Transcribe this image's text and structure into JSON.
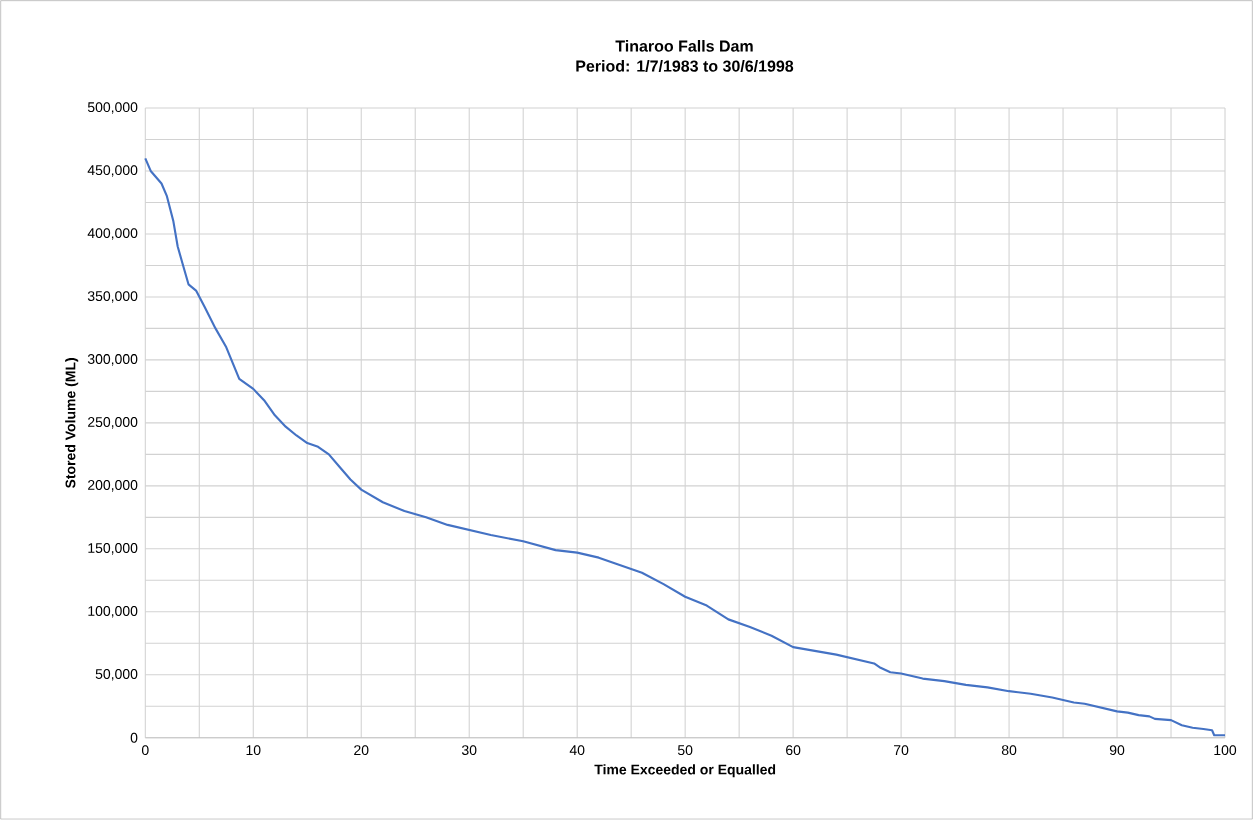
{
  "chart_data": {
    "type": "line",
    "title": "Tinaroo Falls Dam",
    "subtitle": "Period: 1/7/1983 to 30/6/1998",
    "xlabel": "Time Exceeded or Equalled",
    "ylabel": "Stored Volume (ML)",
    "xlim": [
      0,
      100
    ],
    "ylim": [
      0,
      500000
    ],
    "grid": true,
    "legend": false,
    "marker": "none",
    "line_style": "solid",
    "xticks": [
      0,
      {
        "value": 5,
        "label": null
      },
      10,
      {
        "value": 15,
        "label": null
      },
      20,
      {
        "value": 25,
        "label": null
      },
      30,
      {
        "value": 35,
        "label": null
      },
      40,
      {
        "value": 45,
        "label": null
      },
      50,
      {
        "value": 55,
        "label": null
      },
      60,
      {
        "value": 65,
        "label": null
      },
      70,
      {
        "value": 75,
        "label": null
      },
      80,
      {
        "value": 85,
        "label": null
      },
      90,
      {
        "value": 95,
        "label": null
      },
      100
    ],
    "yticks": [
      0,
      {
        "value": 25000,
        "label": null
      },
      {
        "value": 50000,
        "label": "50,000"
      },
      {
        "value": 75000,
        "label": null
      },
      {
        "value": 100000,
        "label": "100,000"
      },
      {
        "value": 125000,
        "label": null
      },
      {
        "value": 150000,
        "label": "150,000"
      },
      {
        "value": 175000,
        "label": null
      },
      {
        "value": 200000,
        "label": "200,000"
      },
      {
        "value": 225000,
        "label": null
      },
      {
        "value": 250000,
        "label": "250,000"
      },
      {
        "value": 275000,
        "label": null
      },
      {
        "value": 300000,
        "label": "300,000"
      },
      {
        "value": 325000,
        "label": null
      },
      {
        "value": 350000,
        "label": "350,000"
      },
      {
        "value": 375000,
        "label": null
      },
      {
        "value": 400000,
        "label": "400,000"
      },
      {
        "value": 425000,
        "label": null
      },
      {
        "value": 450000,
        "label": "450,000"
      },
      {
        "value": 475000,
        "label": null
      },
      {
        "value": 500000,
        "label": "500,000"
      }
    ],
    "series": [
      {
        "color": "#4472c4",
        "x": [
          0,
          0.5,
          1,
          1.5,
          2,
          2.3,
          2.6,
          3,
          3.5,
          4,
          4.7,
          5.5,
          6.5,
          7.5,
          8.7,
          10,
          11,
          12,
          13,
          14,
          15,
          16,
          17,
          18,
          19,
          20,
          22,
          24,
          26,
          28,
          30,
          32,
          35,
          38,
          40,
          42,
          44,
          46,
          48,
          50,
          52,
          54,
          56,
          58,
          60,
          62,
          64,
          66,
          67.5,
          68,
          69,
          70,
          72,
          74,
          76,
          78,
          80,
          82,
          84,
          86,
          87,
          88,
          90,
          91,
          92,
          93,
          93.5,
          95,
          96,
          97,
          98,
          98.8,
          99,
          100
        ],
        "values": [
          460000,
          450000,
          445000,
          440000,
          430000,
          420000,
          410000,
          390000,
          375000,
          360000,
          355000,
          342000,
          325000,
          310000,
          285000,
          277000,
          268000,
          256000,
          247000,
          240000,
          234000,
          231000,
          225000,
          215000,
          205000,
          197000,
          187000,
          180000,
          175000,
          169000,
          165000,
          161000,
          156000,
          149000,
          147000,
          143000,
          137000,
          131000,
          122000,
          112000,
          105000,
          94000,
          88000,
          81000,
          72000,
          69000,
          66000,
          62000,
          59000,
          56000,
          52000,
          51000,
          47000,
          45000,
          42000,
          40000,
          37000,
          35000,
          32000,
          28000,
          27000,
          25000,
          21000,
          20000,
          18000,
          17000,
          15000,
          14000,
          10000,
          8000,
          7000,
          6000,
          2000,
          2000
        ]
      }
    ]
  }
}
